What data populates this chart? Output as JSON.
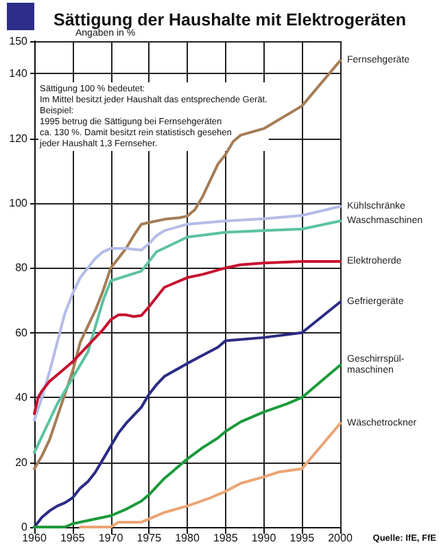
{
  "chart_data": {
    "type": "line",
    "title": "Sättigung der Haushalte mit Elektrogeräten",
    "ylabel": "Angaben in %",
    "annotations": [
      "Sättigung 100 % bedeutet:\nIm Mittel besitzt jeder Haushalt das entsprechende Gerät.\nBeispiel:\n1995 betrug die Sättigung bei Fernsehgeräten\nca. 130 %. Damit besitzt rein statistisch gesehen\njeder Haushalt 1,3 Fernseher.",
      "Quelle: IfE, FfE"
    ],
    "xlim": [
      1960,
      2000
    ],
    "xticks": [
      1960,
      1965,
      1970,
      1975,
      1980,
      1985,
      1990,
      1995,
      2000
    ],
    "ylim": [
      0,
      150
    ],
    "yticks": [
      0,
      20,
      40,
      60,
      80,
      100,
      120,
      140,
      150
    ],
    "grid": true,
    "legend": false,
    "marker": "none",
    "line_style": "solid",
    "series": [
      {
        "name": "Fernsehgeräte",
        "color": "#a57c55",
        "x": [
          1960,
          1961,
          1962,
          1963,
          1964,
          1965,
          1966,
          1967,
          1968,
          1969,
          1970,
          1971,
          1972,
          1973,
          1974,
          1975,
          1977,
          1979,
          1980,
          1981,
          1982,
          1983,
          1984,
          1985,
          1986,
          1987,
          1990,
          1995,
          2000
        ],
        "values": [
          18,
          22,
          27,
          34,
          41,
          48,
          57,
          62,
          67,
          73,
          80,
          83,
          86,
          90,
          93.5,
          94,
          95,
          95.5,
          96,
          98,
          102,
          107,
          112,
          115,
          119,
          121,
          123,
          130,
          144
        ]
      },
      {
        "name": "Kühlschränke",
        "color": "#b4bce8",
        "x": [
          1960,
          1961,
          1962,
          1963,
          1964,
          1965,
          1966,
          1967,
          1968,
          1969,
          1970,
          1972,
          1974,
          1975,
          1976,
          1977,
          1980,
          1985,
          1990,
          1995,
          2000
        ],
        "values": [
          33,
          40,
          48,
          57,
          66,
          72,
          77,
          80,
          83,
          85,
          86,
          86,
          85.5,
          87.5,
          90,
          91.5,
          93.5,
          94.5,
          95.2,
          96.2,
          99
        ]
      },
      {
        "name": "Waschmaschinen",
        "color": "#5cc3a0",
        "x": [
          1960,
          1961,
          1962,
          1963,
          1964,
          1965,
          1966,
          1967,
          1968,
          1969,
          1970,
          1972,
          1974,
          1975,
          1976,
          1980,
          1985,
          1990,
          1995,
          2000
        ],
        "values": [
          23,
          28,
          33,
          38,
          42,
          46,
          50,
          54,
          62,
          70,
          76,
          77.5,
          79,
          82,
          85,
          89.5,
          91,
          91.5,
          92,
          94.5
        ]
      },
      {
        "name": "Elektroherde",
        "color": "#c8102e",
        "x": [
          1960,
          1960.5,
          1961,
          1962,
          1963,
          1964,
          1965,
          1966,
          1967,
          1968,
          1969,
          1970,
          1971,
          1972,
          1973,
          1974,
          1975,
          1976,
          1977,
          1978,
          1980,
          1982,
          1985,
          1987,
          1990,
          1995,
          2000
        ],
        "values": [
          35,
          40,
          42,
          45,
          47,
          49,
          51,
          53.5,
          56,
          58.5,
          61,
          64,
          65.5,
          65.5,
          65,
          65.3,
          68,
          71,
          74,
          75,
          77,
          78,
          80,
          81,
          81.5,
          82,
          82
        ]
      },
      {
        "name": "Gefriergeräte",
        "color": "#2b2b85",
        "x": [
          1960,
          1961,
          1962,
          1963,
          1964,
          1965,
          1966,
          1967,
          1968,
          1969,
          1970,
          1971,
          1972,
          1974,
          1975,
          1976,
          1977,
          1980,
          1982,
          1984,
          1985,
          1990,
          1995,
          2000
        ],
        "values": [
          0,
          3,
          5,
          6.5,
          7.5,
          9,
          12,
          14,
          17,
          21,
          25,
          29,
          32,
          37,
          41,
          44,
          46.5,
          50.5,
          53,
          55.5,
          57.5,
          58.5,
          60,
          69.5
        ]
      },
      {
        "name": "Geschirrspül-maschinen",
        "color": "#1a9a3a",
        "x": [
          1960,
          1964,
          1965,
          1970,
          1972,
          1974,
          1975,
          1977,
          1980,
          1982,
          1984,
          1985,
          1987,
          1990,
          1993,
          1995,
          2000
        ],
        "values": [
          0,
          0,
          1,
          3.5,
          5.5,
          8,
          10,
          15,
          21,
          24.5,
          27.5,
          29.5,
          32.5,
          35.5,
          38,
          40,
          50
        ]
      },
      {
        "name": "Wäschetrockner",
        "color": "#eba474",
        "x": [
          1966,
          1970,
          1971,
          1974,
          1975,
          1977,
          1980,
          1983,
          1985,
          1987,
          1990,
          1992,
          1995,
          2000
        ],
        "values": [
          0,
          0,
          1.5,
          1.5,
          2.5,
          4.5,
          6.5,
          9,
          11,
          13.5,
          15.5,
          17,
          18,
          32
        ]
      }
    ]
  }
}
